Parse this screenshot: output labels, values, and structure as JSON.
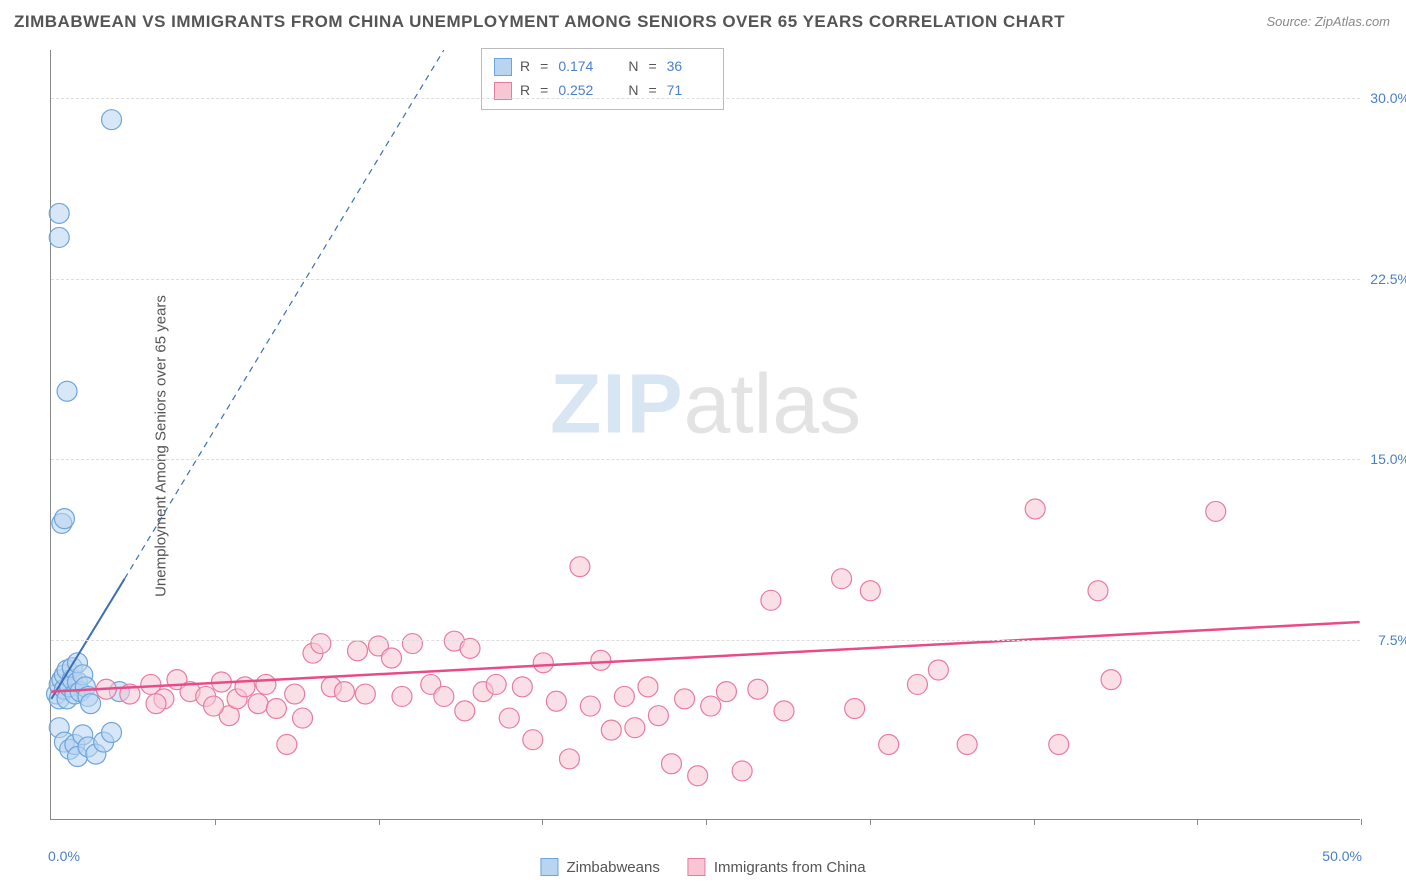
{
  "title": "ZIMBABWEAN VS IMMIGRANTS FROM CHINA UNEMPLOYMENT AMONG SENIORS OVER 65 YEARS CORRELATION CHART",
  "source": "Source: ZipAtlas.com",
  "ylabel": "Unemployment Among Seniors over 65 years",
  "watermark_bold": "ZIP",
  "watermark_light": "atlas",
  "chart": {
    "type": "scatter",
    "xlim": [
      0,
      50
    ],
    "ylim": [
      0,
      32
    ],
    "yticks": [
      7.5,
      15.0,
      22.5,
      30.0
    ],
    "ytick_labels": [
      "7.5%",
      "15.0%",
      "22.5%",
      "30.0%"
    ],
    "xtick_positions": [
      6.25,
      12.5,
      18.75,
      25,
      31.25,
      37.5,
      43.75,
      50
    ],
    "x_origin_label": "0.0%",
    "x_max_label": "50.0%",
    "background_color": "#ffffff",
    "grid_color": "#dddddd",
    "axis_color": "#888888",
    "marker_radius": 10,
    "series": [
      {
        "name": "Zimbabweans",
        "color_fill": "#b8d4f0",
        "color_stroke": "#6ca5db",
        "fill_opacity": 0.55,
        "R": "0.174",
        "N": "36",
        "trend": {
          "solid": {
            "x1": 0,
            "y1": 5.0,
            "x2": 2.8,
            "y2": 10.0
          },
          "dashed": {
            "x1": 2.8,
            "y1": 10.0,
            "x2": 15.0,
            "y2": 32.0
          },
          "stroke": "#3c6fb5",
          "width": 2
        },
        "points": [
          [
            0.2,
            5.2
          ],
          [
            0.3,
            5.6
          ],
          [
            0.3,
            5.0
          ],
          [
            0.4,
            5.8
          ],
          [
            0.5,
            5.4
          ],
          [
            0.5,
            6.0
          ],
          [
            0.6,
            5.0
          ],
          [
            0.6,
            6.2
          ],
          [
            0.7,
            5.5
          ],
          [
            0.8,
            5.8
          ],
          [
            0.8,
            6.3
          ],
          [
            0.9,
            5.2
          ],
          [
            1.0,
            5.7
          ],
          [
            1.0,
            6.5
          ],
          [
            1.1,
            5.3
          ],
          [
            1.2,
            6.0
          ],
          [
            1.3,
            5.5
          ],
          [
            1.4,
            5.1
          ],
          [
            0.3,
            3.8
          ],
          [
            0.5,
            3.2
          ],
          [
            0.7,
            2.9
          ],
          [
            0.9,
            3.1
          ],
          [
            1.0,
            2.6
          ],
          [
            1.2,
            3.5
          ],
          [
            1.4,
            3.0
          ],
          [
            1.7,
            2.7
          ],
          [
            2.0,
            3.2
          ],
          [
            2.3,
            3.6
          ],
          [
            2.6,
            5.3
          ],
          [
            0.4,
            12.3
          ],
          [
            0.5,
            12.5
          ],
          [
            0.6,
            17.8
          ],
          [
            0.3,
            24.2
          ],
          [
            0.3,
            25.2
          ],
          [
            2.3,
            29.1
          ],
          [
            1.5,
            4.8
          ]
        ]
      },
      {
        "name": "Immigrants from China",
        "color_fill": "#f7c5d4",
        "color_stroke": "#e87ba3",
        "fill_opacity": 0.55,
        "R": "0.252",
        "N": "71",
        "trend": {
          "solid": {
            "x1": 0,
            "y1": 5.3,
            "x2": 50,
            "y2": 8.2
          },
          "stroke": "#e84b88",
          "width": 2.5
        },
        "points": [
          [
            2.1,
            5.4
          ],
          [
            3.0,
            5.2
          ],
          [
            3.8,
            5.6
          ],
          [
            4.3,
            5.0
          ],
          [
            4.8,
            5.8
          ],
          [
            5.3,
            5.3
          ],
          [
            5.9,
            5.1
          ],
          [
            6.5,
            5.7
          ],
          [
            6.8,
            4.3
          ],
          [
            7.1,
            5.0
          ],
          [
            7.4,
            5.5
          ],
          [
            7.9,
            4.8
          ],
          [
            8.2,
            5.6
          ],
          [
            8.6,
            4.6
          ],
          [
            9.0,
            3.1
          ],
          [
            9.3,
            5.2
          ],
          [
            10.0,
            6.9
          ],
          [
            10.3,
            7.3
          ],
          [
            10.7,
            5.5
          ],
          [
            11.2,
            5.3
          ],
          [
            11.7,
            7.0
          ],
          [
            12.0,
            5.2
          ],
          [
            12.5,
            7.2
          ],
          [
            13.0,
            6.7
          ],
          [
            13.4,
            5.1
          ],
          [
            13.8,
            7.3
          ],
          [
            14.5,
            5.6
          ],
          [
            15.0,
            5.1
          ],
          [
            15.4,
            7.4
          ],
          [
            16.0,
            7.1
          ],
          [
            16.5,
            5.3
          ],
          [
            17.0,
            5.6
          ],
          [
            17.5,
            4.2
          ],
          [
            18.0,
            5.5
          ],
          [
            18.4,
            3.3
          ],
          [
            18.8,
            6.5
          ],
          [
            19.3,
            4.9
          ],
          [
            19.8,
            2.5
          ],
          [
            20.2,
            10.5
          ],
          [
            20.6,
            4.7
          ],
          [
            21.0,
            6.6
          ],
          [
            21.4,
            3.7
          ],
          [
            21.9,
            5.1
          ],
          [
            22.3,
            3.8
          ],
          [
            22.8,
            5.5
          ],
          [
            23.2,
            4.3
          ],
          [
            23.7,
            2.3
          ],
          [
            24.2,
            5.0
          ],
          [
            24.7,
            1.8
          ],
          [
            25.2,
            4.7
          ],
          [
            25.8,
            5.3
          ],
          [
            26.4,
            2.0
          ],
          [
            27.0,
            5.4
          ],
          [
            27.5,
            9.1
          ],
          [
            28.0,
            4.5
          ],
          [
            30.2,
            10.0
          ],
          [
            30.7,
            4.6
          ],
          [
            31.3,
            9.5
          ],
          [
            32.0,
            3.1
          ],
          [
            33.1,
            5.6
          ],
          [
            33.9,
            6.2
          ],
          [
            35.0,
            3.1
          ],
          [
            37.6,
            12.9
          ],
          [
            38.5,
            3.1
          ],
          [
            40.0,
            9.5
          ],
          [
            40.5,
            5.8
          ],
          [
            44.5,
            12.8
          ],
          [
            15.8,
            4.5
          ],
          [
            9.6,
            4.2
          ],
          [
            6.2,
            4.7
          ],
          [
            4.0,
            4.8
          ]
        ]
      }
    ]
  },
  "stats_legend": [
    {
      "sw": "blue",
      "R": "0.174",
      "N": "36"
    },
    {
      "sw": "pink",
      "R": "0.252",
      "N": "71"
    }
  ],
  "bottom_legend": [
    {
      "sw": "blue",
      "label": "Zimbabweans"
    },
    {
      "sw": "pink",
      "label": "Immigrants from China"
    }
  ]
}
